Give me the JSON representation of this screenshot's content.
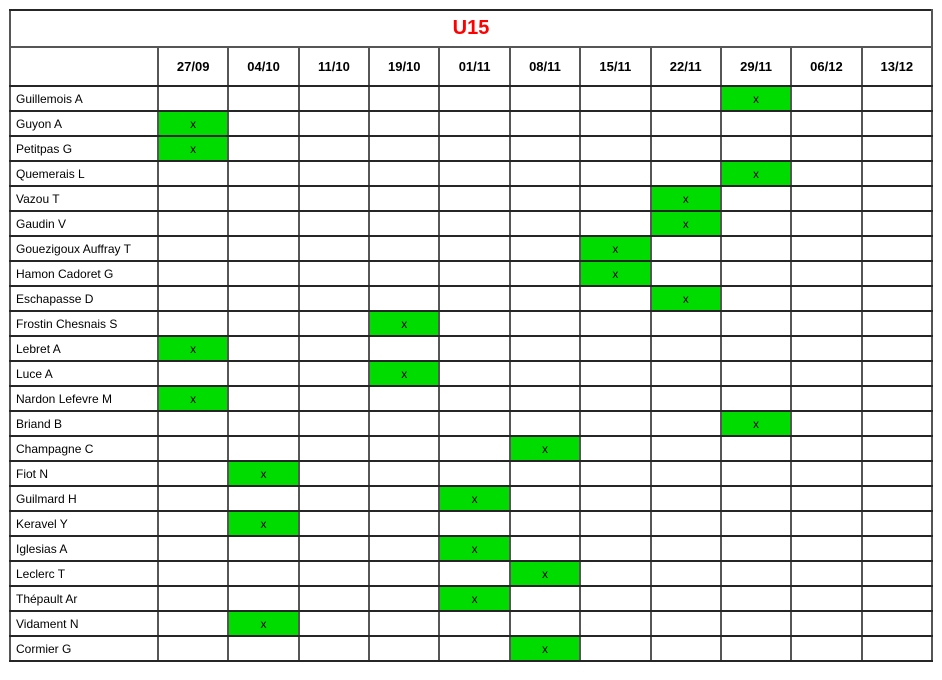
{
  "title": "U15",
  "colors": {
    "title_text": "#FF0000",
    "mark_background": "#00DC00",
    "mark_text": "#000000"
  },
  "mark_symbol": "x",
  "columns": [
    "27/09",
    "04/10",
    "11/10",
    "19/10",
    "01/11",
    "08/11",
    "15/11",
    "22/11",
    "29/11",
    "06/12",
    "13/12"
  ],
  "rows": [
    {
      "name": "Guillemois A",
      "marks": [
        "29/11"
      ]
    },
    {
      "name": "Guyon A",
      "marks": [
        "27/09"
      ]
    },
    {
      "name": "Petitpas G",
      "marks": [
        "27/09"
      ]
    },
    {
      "name": "Quemerais L",
      "marks": [
        "29/11"
      ]
    },
    {
      "name": "Vazou T",
      "marks": [
        "22/11"
      ]
    },
    {
      "name": "Gaudin V",
      "marks": [
        "22/11"
      ]
    },
    {
      "name": "Gouezigoux Auffray T",
      "marks": [
        "15/11"
      ]
    },
    {
      "name": "Hamon Cadoret G",
      "marks": [
        "15/11"
      ]
    },
    {
      "name": "Eschapasse D",
      "marks": [
        "22/11"
      ]
    },
    {
      "name": "Frostin Chesnais S",
      "marks": [
        "19/10"
      ]
    },
    {
      "name": "Lebret A",
      "marks": [
        "27/09"
      ]
    },
    {
      "name": "Luce A",
      "marks": [
        "19/10"
      ]
    },
    {
      "name": "Nardon Lefevre M",
      "marks": [
        "27/09"
      ]
    },
    {
      "name": "Briand B",
      "marks": [
        "29/11"
      ]
    },
    {
      "name": "Champagne C",
      "marks": [
        "08/11"
      ]
    },
    {
      "name": "Fiot N",
      "marks": [
        "04/10"
      ]
    },
    {
      "name": "Guilmard H",
      "marks": [
        "01/11"
      ]
    },
    {
      "name": "Keravel Y",
      "marks": [
        "04/10"
      ]
    },
    {
      "name": "Iglesias A",
      "marks": [
        "01/11"
      ]
    },
    {
      "name": "Leclerc T",
      "marks": [
        "08/11"
      ]
    },
    {
      "name": "Thépault Ar",
      "marks": [
        "01/11"
      ]
    },
    {
      "name": "Vidament N",
      "marks": [
        "04/10"
      ]
    },
    {
      "name": "Cormier G",
      "marks": [
        "08/11"
      ]
    }
  ]
}
